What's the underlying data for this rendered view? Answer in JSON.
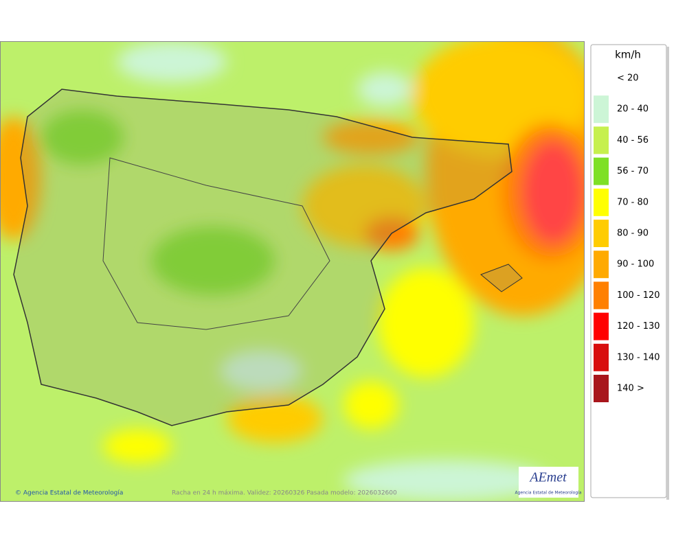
{
  "legend": {
    "title": "km/h",
    "items": [
      {
        "label": "< 20"
      },
      {
        "label": "20 - 40",
        "color": "#ccf5d6"
      },
      {
        "label": "40 - 56",
        "color": "#c6f04e"
      },
      {
        "label": "56 - 70",
        "color": "#7ee026"
      },
      {
        "label": "70 - 80",
        "color": "#ffff00"
      },
      {
        "label": "80 - 90",
        "color": "#ffcc00"
      },
      {
        "label": "90 - 100",
        "color": "#ffaa00"
      },
      {
        "label": "100 - 120",
        "color": "#ff8000"
      },
      {
        "label": "120 - 130",
        "color": "#ff0000"
      },
      {
        "label": "130 - 140",
        "color": "#d80e0e"
      },
      {
        "label": "140 >",
        "color": "#a8161c"
      }
    ]
  },
  "footer": {
    "copyright": "© Agencia Estatal de Meteorología",
    "caption": "Racha en 24 h máxima. Validez: 20260326 Pasada modelo: 2026032600"
  },
  "logo": {
    "name": "AEmet",
    "subtitle": "Agencia Estatal de Meteorología"
  }
}
